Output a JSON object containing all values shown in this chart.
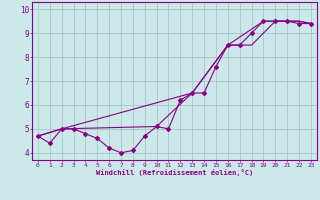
{
  "xlabel": "Windchill (Refroidissement éolien,°C)",
  "xlim": [
    -0.5,
    23.5
  ],
  "ylim": [
    3.7,
    10.3
  ],
  "xticks": [
    0,
    1,
    2,
    3,
    4,
    5,
    6,
    7,
    8,
    9,
    10,
    11,
    12,
    13,
    14,
    15,
    16,
    17,
    18,
    19,
    20,
    21,
    22,
    23
  ],
  "yticks": [
    4,
    5,
    6,
    7,
    8,
    9,
    10
  ],
  "bg_color": "#cce8e8",
  "line_color": "#880088",
  "grid_color": "#aacccc",
  "line1_x": [
    0,
    1,
    2,
    3,
    4,
    5,
    6,
    7,
    8,
    9,
    10,
    11,
    12,
    13,
    14,
    15,
    16,
    17,
    18,
    19,
    20,
    21,
    22,
    23
  ],
  "line1_y": [
    4.7,
    4.4,
    5.0,
    5.0,
    4.8,
    4.6,
    4.2,
    4.0,
    4.1,
    4.7,
    5.1,
    5.0,
    6.2,
    6.5,
    6.5,
    7.6,
    8.5,
    8.5,
    9.0,
    9.5,
    9.5,
    9.5,
    9.4,
    9.4
  ],
  "line2_x": [
    0,
    2,
    10,
    13,
    16,
    19,
    20,
    21,
    22,
    23
  ],
  "line2_y": [
    4.7,
    5.0,
    5.1,
    6.5,
    8.5,
    9.5,
    9.5,
    9.5,
    9.5,
    9.4
  ],
  "line3_x": [
    0,
    2,
    13,
    16,
    17,
    18,
    19,
    20,
    21,
    22,
    23
  ],
  "line3_y": [
    4.7,
    5.0,
    6.5,
    8.5,
    8.5,
    8.5,
    9.0,
    9.5,
    9.5,
    9.5,
    9.4
  ]
}
